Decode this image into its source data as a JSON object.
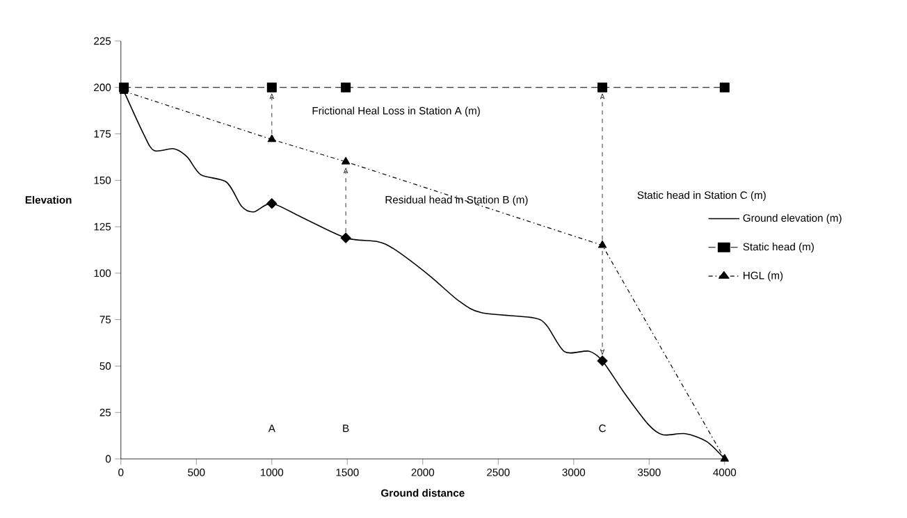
{
  "chart_data": {
    "type": "line",
    "xlabel": "Ground distance",
    "ylabel": "Elevation",
    "xlim": [
      0,
      4000
    ],
    "xticks": [
      0,
      500,
      1000,
      1500,
      2000,
      2500,
      3000,
      3500,
      4000
    ],
    "ylim": [
      0,
      225
    ],
    "yticks": [
      0,
      25,
      50,
      75,
      100,
      125,
      150,
      175,
      200,
      225
    ],
    "grid": false,
    "legend": "right",
    "series": [
      {
        "name": "Ground elevation (m)",
        "type": "line",
        "color": "#000000",
        "line_style": "solid",
        "marker": "none",
        "x": [
          20,
          150,
          220,
          350,
          440,
          530,
          700,
          800,
          880,
          1000,
          1200,
          1490,
          1700,
          1810,
          2040,
          2240,
          2390,
          2730,
          2820,
          2940,
          3100,
          3190,
          3340,
          3495,
          3590,
          3740,
          3880,
          4000
        ],
        "values": [
          198,
          175,
          166,
          167,
          162.5,
          153,
          149,
          136,
          133,
          137.5,
          130,
          119,
          117,
          113,
          99,
          85,
          78.7,
          76,
          72,
          57.7,
          58,
          52.8,
          35,
          18.5,
          13,
          13.6,
          9.4,
          0
        ]
      },
      {
        "type": "scatter",
        "color": "#000000",
        "marker": "diamond",
        "x": [
          1000,
          1490,
          3190
        ],
        "values": [
          137.5,
          119,
          52.8
        ]
      },
      {
        "name": "Static head (m)",
        "type": "line",
        "color": "#000000",
        "line_style": "dashed",
        "marker": "square",
        "x": [
          20,
          1000,
          1490,
          3190,
          4000
        ],
        "values": [
          200,
          200,
          200,
          200,
          200
        ]
      },
      {
        "name": "HGL (m)",
        "type": "line",
        "color": "#000000",
        "line_style": "dotted",
        "marker": "triangle",
        "x": [
          20,
          1000,
          1490,
          3190,
          4000
        ],
        "values": [
          198,
          172,
          160,
          115,
          0
        ]
      }
    ],
    "annotations": [
      "Frictional Heal Loss in Station A (m)",
      "Residual head in Station B (m)",
      "Static head in Station C  (m)",
      "A",
      "B",
      "C"
    ]
  }
}
